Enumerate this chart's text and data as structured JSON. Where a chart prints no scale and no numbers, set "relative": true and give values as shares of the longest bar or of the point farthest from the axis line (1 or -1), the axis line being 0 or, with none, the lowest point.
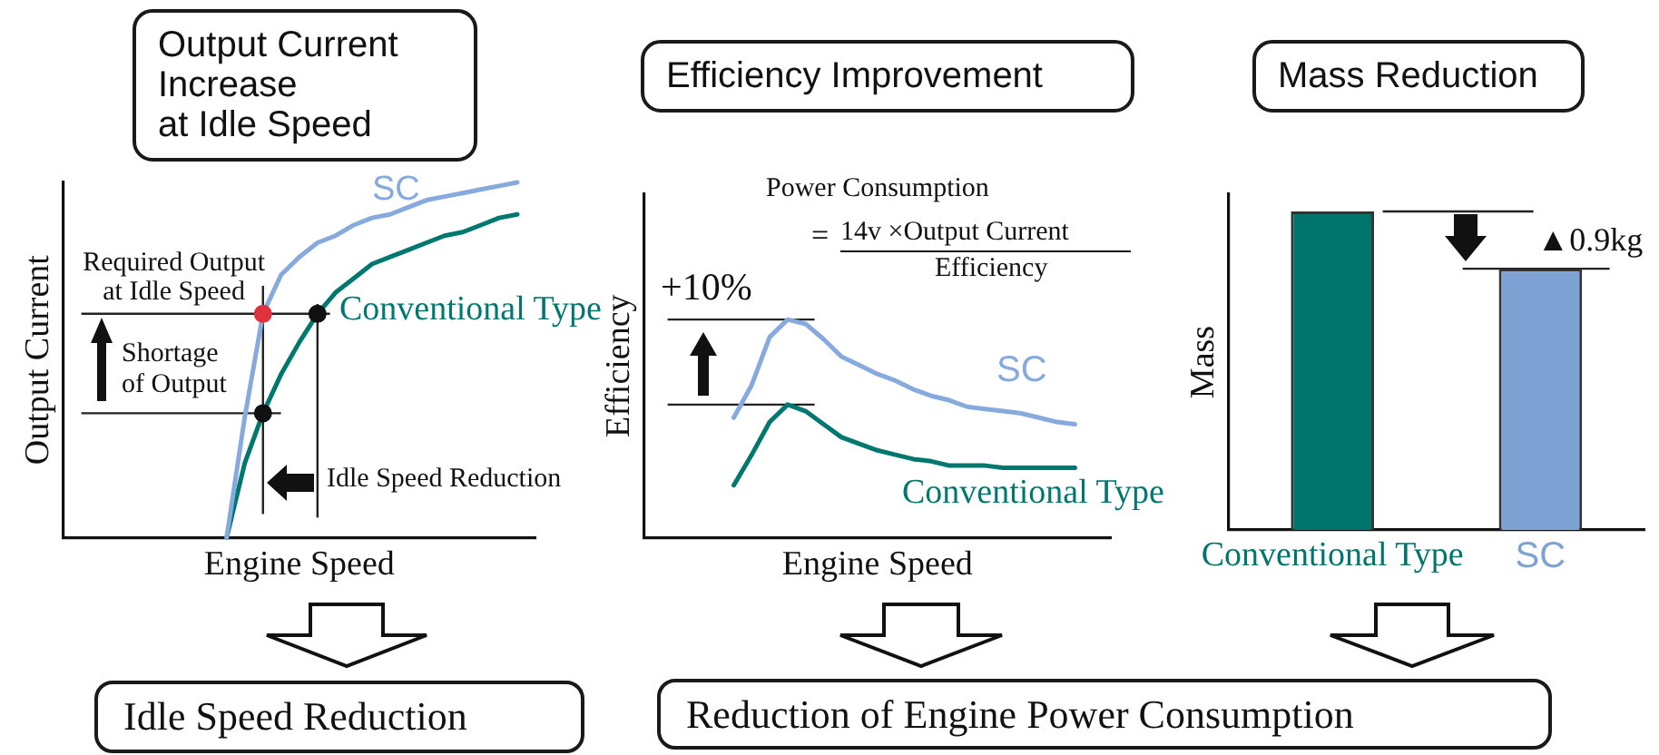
{
  "chart_data": [
    {
      "type": "line",
      "title": "Output Current\nIncrease\nat Idle Speed",
      "xlabel": "Engine Speed",
      "ylabel": "Output Current",
      "relative": true,
      "categories": [
        null,
        null,
        null,
        null,
        null,
        null,
        null,
        null,
        null,
        null,
        null,
        null,
        null,
        null,
        null,
        null,
        null,
        null,
        null,
        null,
        null,
        null,
        null,
        null,
        null,
        null,
        null
      ],
      "series": [
        {
          "name": "SC",
          "color": "#86a9de",
          "values": [
            null,
            null,
            null,
            null,
            null,
            null,
            null,
            null,
            null,
            0,
            0.34,
            0.63,
            0.74,
            0.79,
            0.83,
            0.85,
            0.88,
            0.9,
            0.91,
            0.93,
            0.95,
            0.96,
            0.97,
            0.98,
            0.99,
            1,
            null
          ]
        },
        {
          "name": "Conventional Type",
          "color": "#00786f",
          "values": [
            null,
            null,
            null,
            null,
            null,
            null,
            null,
            null,
            null,
            0,
            0.21,
            0.35,
            0.46,
            0.55,
            0.63,
            0.69,
            0.73,
            0.77,
            0.79,
            0.81,
            0.83,
            0.85,
            0.86,
            0.88,
            0.9,
            0.91,
            null
          ]
        },
        {
          "color": "#e0323c",
          "marker": "circle",
          "values": [
            null,
            null,
            null,
            null,
            null,
            null,
            null,
            null,
            null,
            null,
            null,
            0.63,
            null,
            null,
            null,
            null,
            null,
            null,
            null,
            null,
            null,
            null,
            null,
            null,
            null,
            null,
            null
          ]
        },
        {
          "color": "#111111",
          "marker": "circle",
          "values": [
            null,
            null,
            null,
            null,
            null,
            null,
            null,
            null,
            null,
            null,
            null,
            0.35,
            null,
            null,
            0.63,
            null,
            null,
            null,
            null,
            null,
            null,
            null,
            null,
            null,
            null,
            null,
            null
          ]
        }
      ],
      "ref_lines": [
        {
          "axis": "y",
          "value": 0.63,
          "label": "Required Output at Idle Speed"
        },
        {
          "axis": "y",
          "value": 0.35
        }
      ],
      "annotations": [
        "Shortage of Output",
        "Idle Speed Reduction"
      ]
    },
    {
      "type": "line",
      "title": "Efficiency Improvement",
      "xlabel": "Engine Speed",
      "ylabel": "Efficiency",
      "relative": true,
      "categories": [
        null,
        null,
        null,
        null,
        null,
        null,
        null,
        null,
        null,
        null,
        null,
        null,
        null,
        null,
        null,
        null,
        null,
        null,
        null,
        null,
        null,
        null,
        null,
        null,
        null,
        null,
        null
      ],
      "series": [
        {
          "name": "SC",
          "color": "#86a9de",
          "values": [
            null,
            null,
            null,
            null,
            null,
            0.55,
            0.7,
            0.92,
            1,
            0.98,
            0.91,
            0.83,
            0.79,
            0.75,
            0.72,
            0.68,
            0.65,
            0.63,
            0.6,
            0.59,
            0.58,
            0.57,
            0.55,
            0.53,
            0.52,
            null,
            null
          ]
        },
        {
          "name": "Conventional Type",
          "color": "#00786f",
          "values": [
            null,
            null,
            null,
            null,
            null,
            0.24,
            0.38,
            0.53,
            0.61,
            0.58,
            0.52,
            0.46,
            0.43,
            0.4,
            0.38,
            0.36,
            0.35,
            0.33,
            0.33,
            0.33,
            0.32,
            0.32,
            0.32,
            0.32,
            0.32,
            null,
            null
          ]
        }
      ],
      "ref_lines": [
        {
          "axis": "y",
          "value": 1
        },
        {
          "axis": "y",
          "value": 0.61
        }
      ],
      "annotations": [
        "+10%",
        "Power Consumption",
        "=",
        "14v ×Output Current",
        "Efficiency"
      ]
    },
    {
      "type": "bar",
      "title": "Mass Reduction",
      "ylabel": "Mass",
      "relative": true,
      "categories": [
        "Conventional Type",
        "SC"
      ],
      "values": [
        1,
        0.82
      ],
      "colors": [
        "#00756d",
        "#7fa2d5"
      ],
      "ref_lines": [
        {
          "axis": "y",
          "value": 1
        },
        {
          "axis": "y",
          "value": 0.82,
          "label": "▲0.9kg"
        }
      ]
    },
    {
      "type": "other",
      "annotations": [
        "Idle Speed Reduction",
        "Reduction of Engine Power Consumption"
      ]
    }
  ]
}
